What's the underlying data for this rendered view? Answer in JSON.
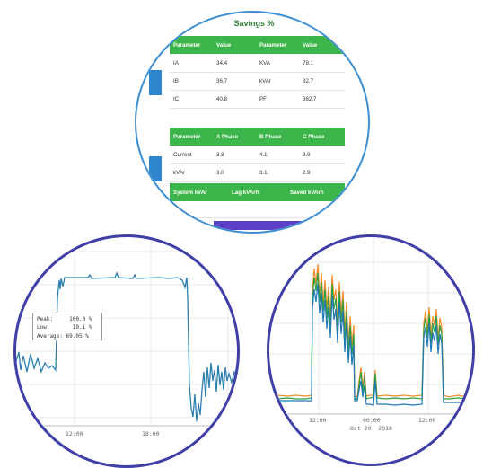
{
  "savings": {
    "title": "Savings %",
    "table1": {
      "headers": [
        "Parameter",
        "Value",
        "Parameter",
        "Value"
      ],
      "rows": [
        [
          "IA",
          "34.4",
          "KVA",
          "78.1"
        ],
        [
          "IB",
          "36.7",
          "kVAr",
          "82.7"
        ],
        [
          "IC",
          "40.8",
          "PF",
          "362.7"
        ]
      ]
    },
    "table2": {
      "headers": [
        "Parameter",
        "A Phase",
        "B Phase",
        "C Phase"
      ],
      "rows": [
        [
          "Current",
          "3.8",
          "4.1",
          "3.9"
        ],
        [
          "kVAr",
          "3.0",
          "3.1",
          "2.9"
        ]
      ]
    },
    "table3": {
      "headers": [
        "System kVAr",
        "Lag kVArh",
        "Saved kVArh"
      ]
    }
  },
  "left_chart": {
    "tooltip": {
      "peak_label": "Peak:",
      "peak_value": "100.0 %",
      "low_label": "Low:",
      "low_value": "19.1 %",
      "avg_label": "Average:",
      "avg_value": "69.05 %"
    },
    "x_ticks": [
      "12:00",
      "18:00"
    ],
    "colors": {
      "line": "#2a7fae"
    }
  },
  "right_chart": {
    "x_ticks": [
      "12:00",
      "00:00",
      "12:00"
    ],
    "date_label": "Oct 20, 2018",
    "colors": {
      "orange": "#f28b25",
      "green": "#2ea043",
      "blue": "#1f77b4"
    }
  },
  "colors": {
    "accent": "#3cb54a",
    "border_top": "#3d8fd1",
    "border_bottom": "#3f3fa8"
  }
}
